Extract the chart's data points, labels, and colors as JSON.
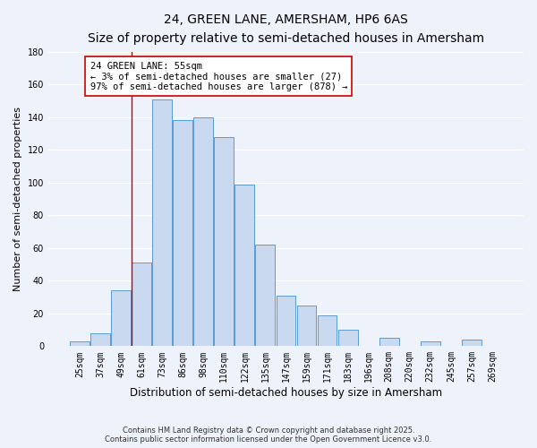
{
  "title": "24, GREEN LANE, AMERSHAM, HP6 6AS",
  "subtitle": "Size of property relative to semi-detached houses in Amersham",
  "xlabel": "Distribution of semi-detached houses by size in Amersham",
  "ylabel": "Number of semi-detached properties",
  "bar_labels": [
    "25sqm",
    "37sqm",
    "49sqm",
    "61sqm",
    "73sqm",
    "86sqm",
    "98sqm",
    "110sqm",
    "122sqm",
    "135sqm",
    "147sqm",
    "159sqm",
    "171sqm",
    "183sqm",
    "196sqm",
    "208sqm",
    "220sqm",
    "232sqm",
    "245sqm",
    "257sqm",
    "269sqm"
  ],
  "bar_values": [
    3,
    8,
    34,
    51,
    151,
    138,
    140,
    128,
    99,
    62,
    31,
    25,
    19,
    10,
    0,
    5,
    0,
    3,
    0,
    4,
    0
  ],
  "bar_color": "#c9d9f0",
  "bar_edge_color": "#5b9bd5",
  "vline_x_index": 2,
  "vline_color": "#cc0000",
  "annotation_title": "24 GREEN LANE: 55sqm",
  "annotation_line1": "← 3% of semi-detached houses are smaller (27)",
  "annotation_line2": "97% of semi-detached houses are larger (878) →",
  "annotation_box_color": "#ffffff",
  "annotation_box_edge": "#cc0000",
  "ylim": [
    0,
    180
  ],
  "yticks": [
    0,
    20,
    40,
    60,
    80,
    100,
    120,
    140,
    160,
    180
  ],
  "footnote1": "Contains HM Land Registry data © Crown copyright and database right 2025.",
  "footnote2": "Contains public sector information licensed under the Open Government Licence v3.0.",
  "background_color": "#eef2fb",
  "grid_color": "#ffffff",
  "title_fontsize": 10,
  "subtitle_fontsize": 8.5,
  "ylabel_fontsize": 8,
  "xlabel_fontsize": 8.5,
  "tick_fontsize": 7,
  "annotation_fontsize": 7.5,
  "footnote_fontsize": 6
}
